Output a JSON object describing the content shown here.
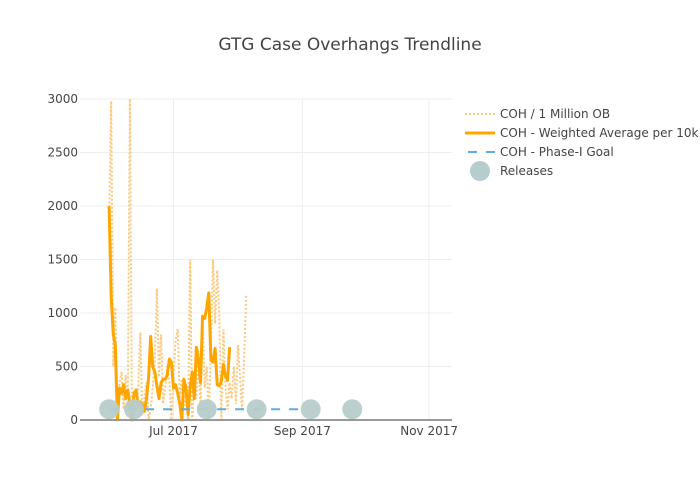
{
  "chart_data": {
    "type": "line",
    "title": "GTG Case Overhangs Trendline",
    "xlabel": "",
    "ylabel": "",
    "x_axis": {
      "type": "date",
      "range": [
        "2017-05-17",
        "2017-11-12"
      ],
      "ticks": [
        {
          "date": "2017-07-01",
          "label": "Jul 2017"
        },
        {
          "date": "2017-09-01",
          "label": "Sep 2017"
        },
        {
          "date": "2017-11-01",
          "label": "Nov 2017"
        }
      ]
    },
    "y_axis": {
      "range": [
        0,
        3000
      ],
      "ticks": [
        0,
        500,
        1000,
        1500,
        2000,
        2500,
        3000
      ]
    },
    "grid": true,
    "legend_position": "top-right",
    "series": [
      {
        "name": "COH / 1 Million OB",
        "style": "dotted",
        "color": "#fdc77c",
        "points": [
          [
            "2017-05-31",
            1800
          ],
          [
            "2017-06-01",
            2980
          ],
          [
            "2017-06-02",
            500
          ],
          [
            "2017-06-03",
            1050
          ],
          [
            "2017-06-04",
            100
          ],
          [
            "2017-06-05",
            350
          ],
          [
            "2017-06-06",
            450
          ],
          [
            "2017-06-07",
            100
          ],
          [
            "2017-06-08",
            420
          ],
          [
            "2017-06-09",
            150
          ],
          [
            "2017-06-10",
            3000
          ],
          [
            "2017-06-11",
            0
          ],
          [
            "2017-06-12",
            200
          ],
          [
            "2017-06-13",
            100
          ],
          [
            "2017-06-14",
            300
          ],
          [
            "2017-06-15",
            820
          ],
          [
            "2017-06-16",
            50
          ],
          [
            "2017-06-17",
            200
          ],
          [
            "2017-06-18",
            350
          ],
          [
            "2017-06-19",
            0
          ],
          [
            "2017-06-20",
            100
          ],
          [
            "2017-06-21",
            300
          ],
          [
            "2017-06-22",
            550
          ],
          [
            "2017-06-23",
            1230
          ],
          [
            "2017-06-24",
            400
          ],
          [
            "2017-06-25",
            800
          ],
          [
            "2017-06-26",
            150
          ],
          [
            "2017-06-27",
            300
          ],
          [
            "2017-06-28",
            500
          ],
          [
            "2017-06-29",
            350
          ],
          [
            "2017-06-30",
            0
          ],
          [
            "2017-07-01",
            420
          ],
          [
            "2017-07-02",
            750
          ],
          [
            "2017-07-03",
            850
          ],
          [
            "2017-07-04",
            200
          ],
          [
            "2017-07-05",
            380
          ],
          [
            "2017-07-06",
            100
          ],
          [
            "2017-07-07",
            250
          ],
          [
            "2017-07-08",
            0
          ],
          [
            "2017-07-09",
            1500
          ],
          [
            "2017-07-10",
            0
          ],
          [
            "2017-07-11",
            400
          ],
          [
            "2017-07-12",
            200
          ],
          [
            "2017-07-13",
            650
          ],
          [
            "2017-07-14",
            100
          ],
          [
            "2017-07-15",
            900
          ],
          [
            "2017-07-16",
            300
          ],
          [
            "2017-07-17",
            500
          ],
          [
            "2017-07-18",
            0
          ],
          [
            "2017-07-19",
            700
          ],
          [
            "2017-07-20",
            1500
          ],
          [
            "2017-07-21",
            900
          ],
          [
            "2017-07-22",
            1400
          ],
          [
            "2017-07-23",
            1000
          ],
          [
            "2017-07-24",
            0
          ],
          [
            "2017-07-25",
            850
          ],
          [
            "2017-07-26",
            300
          ],
          [
            "2017-07-27",
            100
          ],
          [
            "2017-07-28",
            350
          ],
          [
            "2017-07-29",
            200
          ],
          [
            "2017-07-30",
            500
          ],
          [
            "2017-07-31",
            150
          ],
          [
            "2017-08-01",
            700
          ],
          [
            "2017-08-02",
            400
          ],
          [
            "2017-08-03",
            100
          ],
          [
            "2017-08-04",
            600
          ],
          [
            "2017-08-05",
            1180
          ]
        ]
      },
      {
        "name": "COH - Weighted Average per 10k",
        "style": "solid",
        "color": "#ffa500",
        "points": [
          [
            "2017-05-31",
            2000
          ],
          [
            "2017-06-01",
            1150
          ],
          [
            "2017-06-02",
            800
          ],
          [
            "2017-06-03",
            700
          ],
          [
            "2017-06-04",
            0
          ],
          [
            "2017-06-05",
            300
          ],
          [
            "2017-06-06",
            250
          ],
          [
            "2017-06-07",
            330
          ],
          [
            "2017-06-08",
            200
          ],
          [
            "2017-06-09",
            280
          ],
          [
            "2017-06-10",
            150
          ],
          [
            "2017-06-11",
            0
          ],
          [
            "2017-06-12",
            250
          ],
          [
            "2017-06-13",
            280
          ],
          [
            "2017-06-14",
            130
          ],
          [
            "2017-06-15",
            170
          ],
          [
            "2017-06-16",
            150
          ],
          [
            "2017-06-17",
            80
          ],
          [
            "2017-06-18",
            200
          ],
          [
            "2017-06-19",
            400
          ],
          [
            "2017-06-20",
            780
          ],
          [
            "2017-06-21",
            500
          ],
          [
            "2017-06-22",
            450
          ],
          [
            "2017-06-23",
            320
          ],
          [
            "2017-06-24",
            200
          ],
          [
            "2017-06-25",
            350
          ],
          [
            "2017-06-26",
            380
          ],
          [
            "2017-06-27",
            380
          ],
          [
            "2017-06-28",
            420
          ],
          [
            "2017-06-29",
            570
          ],
          [
            "2017-06-30",
            540
          ],
          [
            "2017-07-01",
            300
          ],
          [
            "2017-07-02",
            330
          ],
          [
            "2017-07-03",
            250
          ],
          [
            "2017-07-04",
            150
          ],
          [
            "2017-07-05",
            0
          ],
          [
            "2017-07-06",
            380
          ],
          [
            "2017-07-07",
            300
          ],
          [
            "2017-07-08",
            50
          ],
          [
            "2017-07-09",
            300
          ],
          [
            "2017-07-10",
            450
          ],
          [
            "2017-07-11",
            200
          ],
          [
            "2017-07-12",
            680
          ],
          [
            "2017-07-13",
            560
          ],
          [
            "2017-07-14",
            350
          ],
          [
            "2017-07-15",
            970
          ],
          [
            "2017-07-16",
            950
          ],
          [
            "2017-07-17",
            1050
          ],
          [
            "2017-07-18",
            1190
          ],
          [
            "2017-07-19",
            560
          ],
          [
            "2017-07-20",
            540
          ],
          [
            "2017-07-21",
            670
          ],
          [
            "2017-07-22",
            330
          ],
          [
            "2017-07-23",
            320
          ],
          [
            "2017-07-24",
            360
          ],
          [
            "2017-07-25",
            520
          ],
          [
            "2017-07-26",
            410
          ],
          [
            "2017-07-27",
            370
          ],
          [
            "2017-07-28",
            680
          ]
        ]
      },
      {
        "name": "COH - Phase-I Goal",
        "style": "dashed",
        "color": "#5dade2",
        "points": [
          [
            "2017-05-31",
            100
          ],
          [
            "2017-08-31",
            100
          ]
        ]
      },
      {
        "name": "Releases",
        "style": "markers",
        "color": "#b7cccc",
        "points": [
          [
            "2017-05-31",
            100
          ],
          [
            "2017-06-12",
            100
          ],
          [
            "2017-07-17",
            100
          ],
          [
            "2017-08-10",
            100
          ],
          [
            "2017-09-05",
            100
          ],
          [
            "2017-09-25",
            100
          ]
        ]
      }
    ]
  }
}
